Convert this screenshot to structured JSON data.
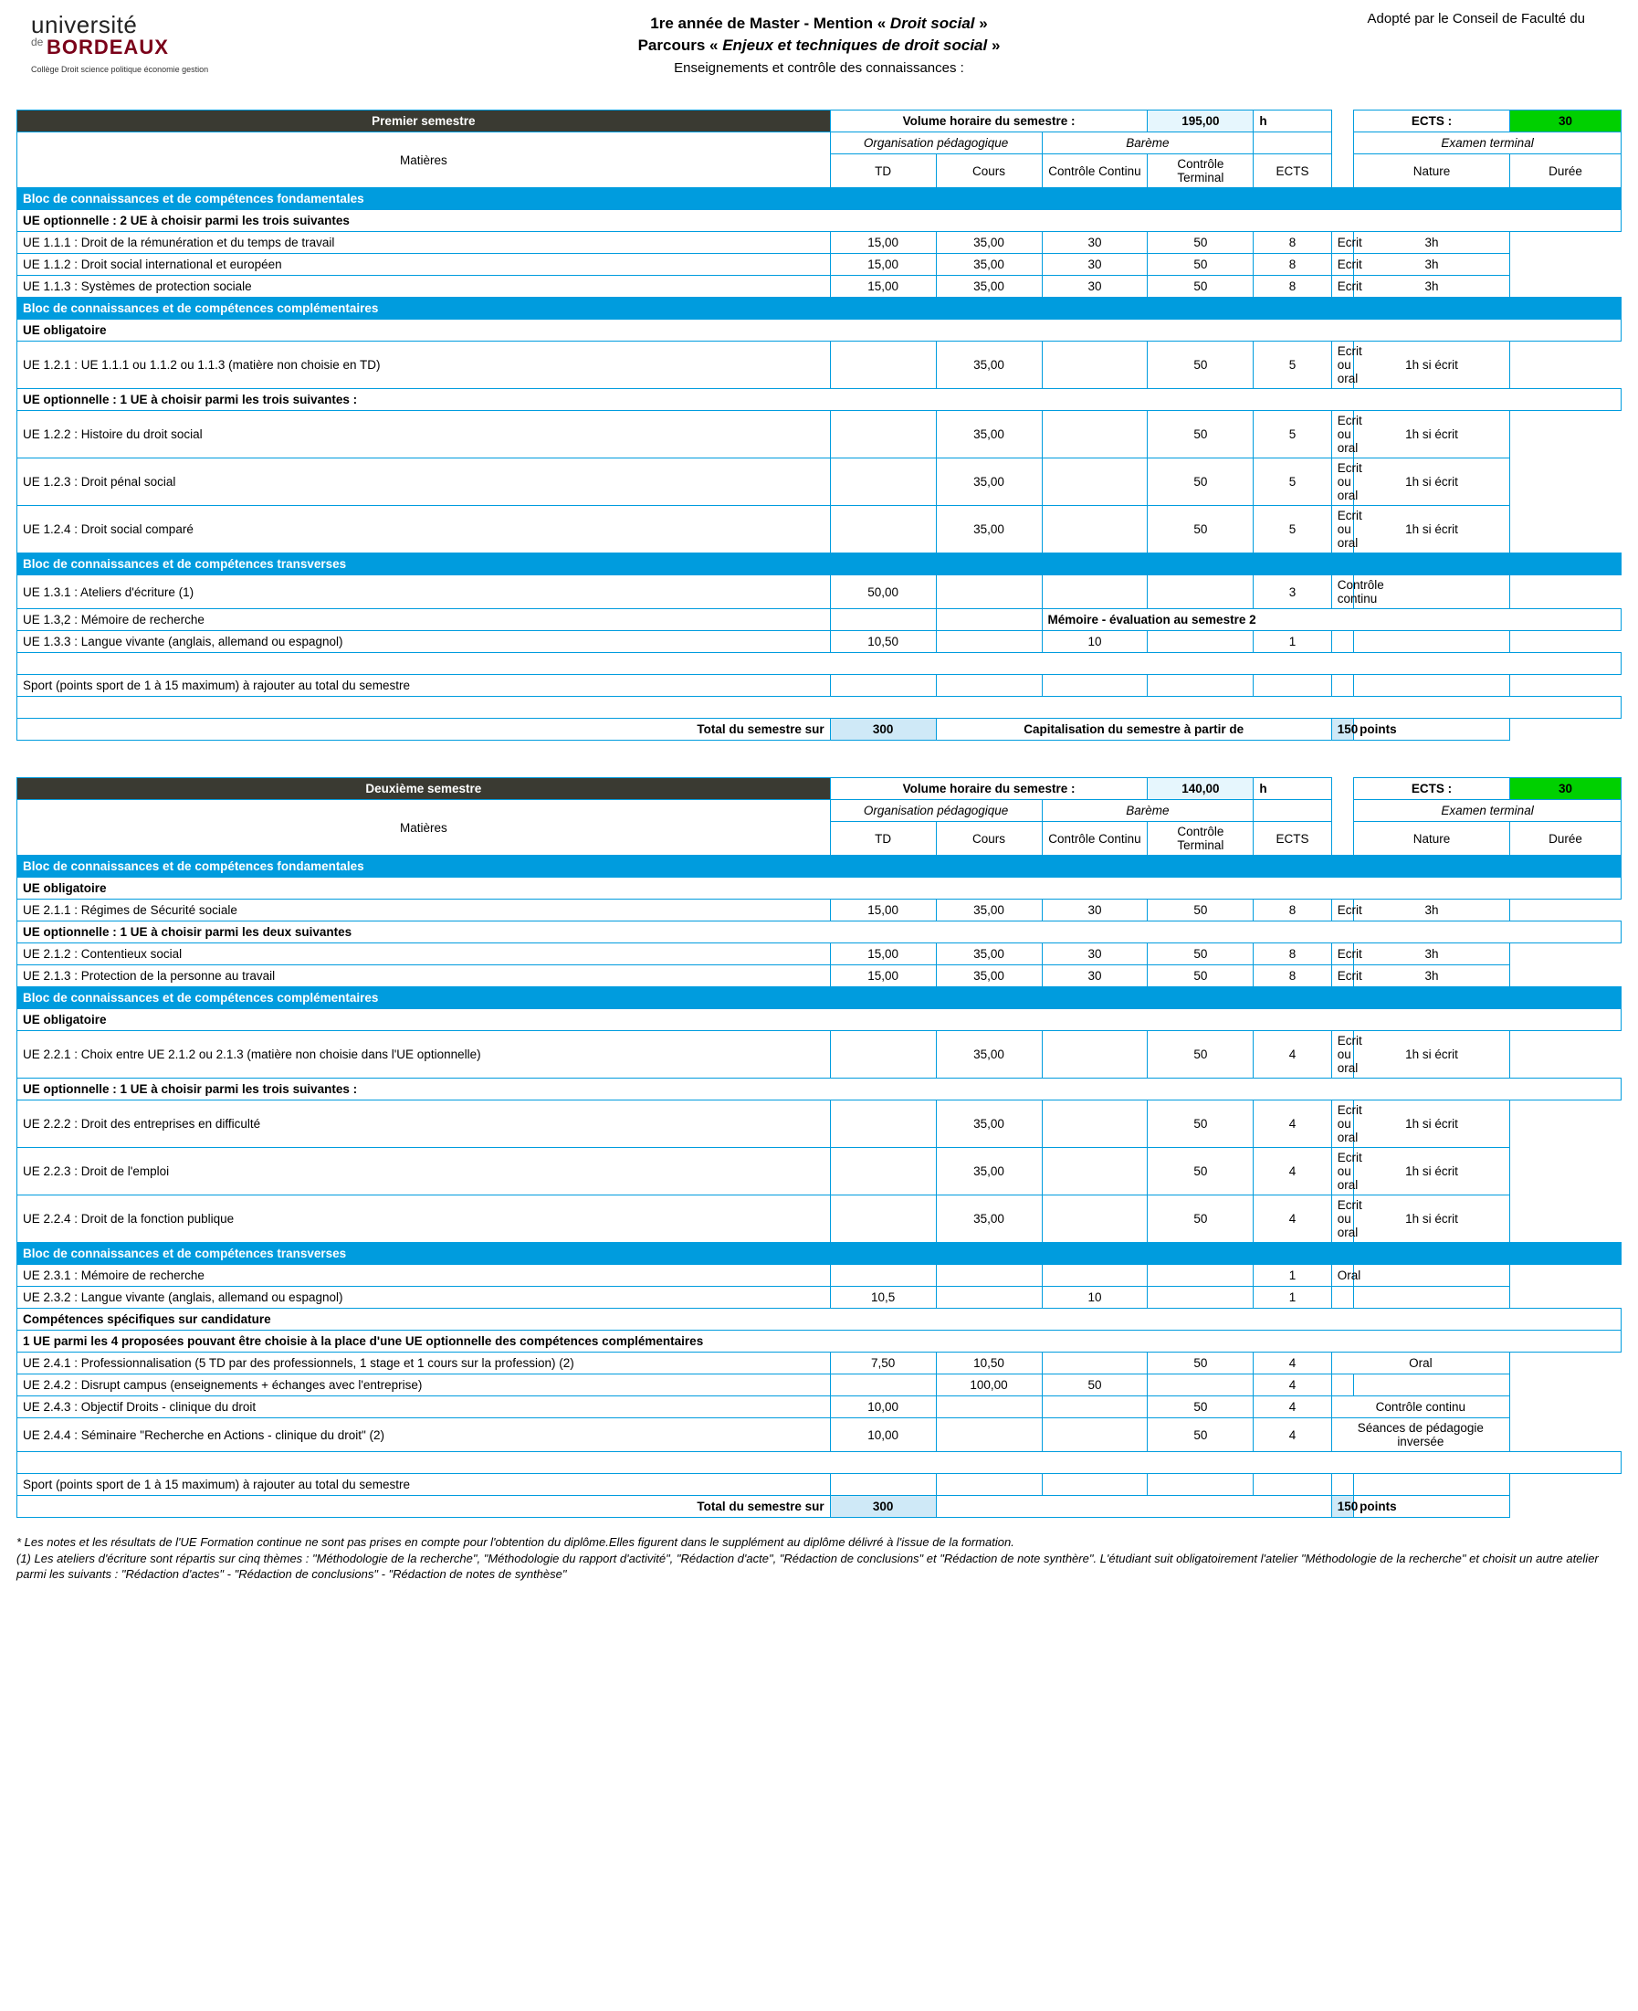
{
  "header": {
    "logo_line1a": "université",
    "logo_line1b": "de",
    "logo_line2": "BORDEAUX",
    "logo_sub": "Collège Droit science politique économie gestion",
    "adopted": "Adopté par le Conseil de Faculté du",
    "title1_pre": "1re année de Master - Mention « ",
    "title1_it": "Droit social",
    "title1_post": " »",
    "title2_pre": "Parcours  «  ",
    "title2_it": "Enjeux et techniques de droit social",
    "title2_post": "  »",
    "title3": "Enseignements et contrôle des connaissances :"
  },
  "labels": {
    "matieres": "Matières",
    "volume": "Volume horaire du semestre :",
    "h": "h",
    "ects": "ECTS :",
    "org": "Organisation pédagogique",
    "bareme": "Barème",
    "exam": "Examen terminal",
    "td": "TD",
    "cours": "Cours",
    "cc": "Contrôle Continu",
    "ct": "Contrôle Terminal",
    "ectscol": "ECTS",
    "nature": "Nature",
    "duree": "Durée",
    "total_label": "Total du semestre sur",
    "cap": "Capitalisation du semestre à partir de",
    "points": "points"
  },
  "s1": {
    "title": "Premier semestre",
    "volume": "195,00",
    "ects": "30",
    "tot300": "300",
    "tot150": "150",
    "rows": [
      {
        "t": "bloc",
        "label": "Bloc de connaissances et de compétences fondamentales"
      },
      {
        "t": "bold",
        "label": "UE optionnelle : 2 UE à choisir parmi les trois suivantes"
      },
      {
        "t": "ue",
        "label": "UE 1.1.1 : Droit de la rémunération et du temps de travail",
        "td": "15,00",
        "cours": "35,00",
        "cc": "30",
        "ct": "50",
        "ects": "8",
        "nat": "Ecrit",
        "dur": "3h"
      },
      {
        "t": "ue",
        "label": "UE 1.1.2 : Droit social international et européen",
        "td": "15,00",
        "cours": "35,00",
        "cc": "30",
        "ct": "50",
        "ects": "8",
        "nat": "Ecrit",
        "dur": "3h"
      },
      {
        "t": "ue",
        "label": "UE 1.1.3 : Systèmes de protection sociale",
        "td": "15,00",
        "cours": "35,00",
        "cc": "30",
        "ct": "50",
        "ects": "8",
        "nat": "Ecrit",
        "dur": "3h"
      },
      {
        "t": "bloc",
        "label": "Bloc de connaissances et de compétences complémentaires"
      },
      {
        "t": "bold",
        "label": "UE obligatoire"
      },
      {
        "t": "ue",
        "label": "UE 1.2.1 : UE 1.1.1 ou 1.1.2 ou 1.1.3 (matière non choisie en TD)",
        "td": "",
        "cours": "35,00",
        "cc": "",
        "ct": "50",
        "ects": "5",
        "nat": "Ecrit ou oral",
        "dur": "1h si écrit"
      },
      {
        "t": "bold",
        "label": "UE optionnelle : 1 UE à choisir parmi les trois suivantes :"
      },
      {
        "t": "ue",
        "label": "UE 1.2.2 : Histoire du droit social",
        "td": "",
        "cours": "35,00",
        "cc": "",
        "ct": "50",
        "ects": "5",
        "nat": "Ecrit ou oral",
        "dur": "1h si écrit"
      },
      {
        "t": "ue",
        "label": "UE 1.2.3 : Droit pénal social",
        "td": "",
        "cours": "35,00",
        "cc": "",
        "ct": "50",
        "ects": "5",
        "nat": "Ecrit ou oral",
        "dur": "1h si écrit"
      },
      {
        "t": "ue",
        "label": "UE 1.2.4 : Droit social comparé",
        "td": "",
        "cours": "35,00",
        "cc": "",
        "ct": "50",
        "ects": "5",
        "nat": "Ecrit ou oral",
        "dur": "1h si écrit"
      },
      {
        "t": "bloc",
        "label": "Bloc de connaissances et de compétences transverses"
      },
      {
        "t": "ue",
        "label": "UE 1.3.1 : Ateliers d'écriture (1)",
        "td": "50,00",
        "cours": "",
        "cc": "",
        "ct": "",
        "ects": "3",
        "nat": "Contrôle continu",
        "dur": ""
      },
      {
        "t": "ue_mem",
        "label": "UE 1.3,2 : Mémoire de recherche",
        "mem": "Mémoire - évaluation au semestre 2"
      },
      {
        "t": "ue",
        "label": "UE 1.3.3 : Langue vivante (anglais, allemand ou espagnol)",
        "td": "10,50",
        "cours": "",
        "cc": "10",
        "ct": "",
        "ects": "1",
        "nat": "",
        "dur": ""
      },
      {
        "t": "blank"
      },
      {
        "t": "plain",
        "label": "Sport (points sport de 1 à 15 maximum) à rajouter au total du semestre"
      },
      {
        "t": "blank"
      }
    ]
  },
  "s2": {
    "title": "Deuxième semestre",
    "volume": "140,00",
    "ects": "30",
    "tot300": "300",
    "tot150": "150",
    "rows": [
      {
        "t": "bloc",
        "label": "Bloc de connaissances et de compétences fondamentales"
      },
      {
        "t": "bold",
        "label": "UE obligatoire"
      },
      {
        "t": "ue",
        "label": "UE 2.1.1 : Régimes de Sécurité sociale",
        "td": "15,00",
        "cours": "35,00",
        "cc": "30",
        "ct": "50",
        "ects": "8",
        "nat": "Ecrit",
        "dur": "3h"
      },
      {
        "t": "bold",
        "label": "UE optionnelle : 1 UE à choisir parmi les deux suivantes"
      },
      {
        "t": "ue",
        "label": "UE 2.1.2 : Contentieux social",
        "td": "15,00",
        "cours": "35,00",
        "cc": "30",
        "ct": "50",
        "ects": "8",
        "nat": "Ecrit",
        "dur": "3h"
      },
      {
        "t": "ue",
        "label": "UE 2.1.3 : Protection de la personne au travail",
        "td": "15,00",
        "cours": "35,00",
        "cc": "30",
        "ct": "50",
        "ects": "8",
        "nat": "Ecrit",
        "dur": "3h"
      },
      {
        "t": "bloc",
        "label": "Bloc de connaissances et de compétences complémentaires"
      },
      {
        "t": "bold",
        "label": "UE obligatoire"
      },
      {
        "t": "ue",
        "label": "UE 2.2.1 : Choix entre UE 2.1.2 ou 2.1.3 (matière non choisie dans l'UE optionnelle)",
        "td": "",
        "cours": "35,00",
        "cc": "",
        "ct": "50",
        "ects": "4",
        "nat": "Ecrit ou oral",
        "dur": "1h si écrit"
      },
      {
        "t": "bold",
        "label": "UE optionnelle : 1 UE à choisir parmi les trois suivantes :"
      },
      {
        "t": "ue",
        "label": "UE 2.2.2 : Droit des entreprises en difficulté",
        "td": "",
        "cours": "35,00",
        "cc": "",
        "ct": "50",
        "ects": "4",
        "nat": "Ecrit ou oral",
        "dur": "1h si écrit"
      },
      {
        "t": "ue",
        "label": "UE 2.2.3 : Droit de l'emploi",
        "td": "",
        "cours": "35,00",
        "cc": "",
        "ct": "50",
        "ects": "4",
        "nat": "Ecrit ou oral",
        "dur": "1h si écrit"
      },
      {
        "t": "ue",
        "label": "UE 2.2.4 : Droit de la fonction publique",
        "td": "",
        "cours": "35,00",
        "cc": "",
        "ct": "50",
        "ects": "4",
        "nat": "Ecrit ou oral",
        "dur": "1h si écrit"
      },
      {
        "t": "bloc",
        "label": "Bloc de connaissances et de compétences transverses"
      },
      {
        "t": "ue",
        "label": "UE 2.3.1 : Mémoire de recherche",
        "td": "",
        "cours": "",
        "cc": "",
        "ct": "",
        "ects": "1",
        "nat": "Oral",
        "dur": ""
      },
      {
        "t": "ue",
        "label": "UE 2.3.2 : Langue vivante (anglais, allemand ou espagnol)",
        "td": "10,5",
        "cours": "",
        "cc": "10",
        "ct": "",
        "ects": "1",
        "nat": "",
        "dur": ""
      },
      {
        "t": "bold",
        "label": "Compétences spécifiques sur candidature"
      },
      {
        "t": "bold",
        "label": "1 UE parmi les 4 proposées pouvant être choisie à la place d'une UE optionnelle des compétences complémentaires"
      },
      {
        "t": "ue_natspan",
        "label": "UE 2.4.1 : Professionnalisation (5 TD par des professionnels, 1 stage et 1 cours sur la profession) (2)",
        "td": "7,50",
        "cours": "10,50",
        "cc": "",
        "ct": "50",
        "ects": "4",
        "nat": "Oral"
      },
      {
        "t": "ue",
        "label": "UE 2.4.2 : Disrupt campus (enseignements + échanges avec l'entreprise)",
        "td": "",
        "cours": "100,00",
        "cc": "50",
        "ct": "",
        "ects": "4",
        "nat": "",
        "dur": ""
      },
      {
        "t": "ue_natspan",
        "label": "UE 2.4.3 : Objectif Droits - clinique du droit",
        "td": "10,00",
        "cours": "",
        "cc": "",
        "ct": "50",
        "ects": "4",
        "nat": "Contrôle continu"
      },
      {
        "t": "ue_natspan",
        "label": "UE 2.4.4 : Séminaire \"Recherche en Actions - clinique du droit\" (2)",
        "td": "10,00",
        "cours": "",
        "cc": "",
        "ct": "50",
        "ects": "4",
        "nat": "Séances de pédagogie inversée"
      },
      {
        "t": "blank"
      },
      {
        "t": "plain",
        "label": "Sport (points sport de 1 à 15 maximum) à rajouter au total du semestre"
      }
    ]
  },
  "footnotes": [
    "* Les notes et les résultats de l'UE Formation continue ne sont pas prises en compte pour l'obtention du diplôme.Elles figurent dans le supplément au diplôme délivré à l'issue de la formation.",
    "(1) Les ateliers d'écriture sont répartis sur cinq thèmes : \"Méthodologie de la recherche\", \"Méthodologie du rapport d'activité\", \"Rédaction d'acte\", \"Rédaction de conclusions\" et \"Rédaction de note synthère\".  L'étudiant suit obligatoirement l'atelier \"Méthodologie de la recherche\" et choisit un autre atelier parmi les suivants : \"Rédaction d'actes\" - \"Rédaction de conclusions\" - \"Rédaction de notes de synthèse\""
  ],
  "colors": {
    "blue": "#009cde",
    "dark": "#3a3a32",
    "green": "#00d000",
    "lightblue": "#cfe9f7",
    "bordeaux": "#7a0019"
  }
}
